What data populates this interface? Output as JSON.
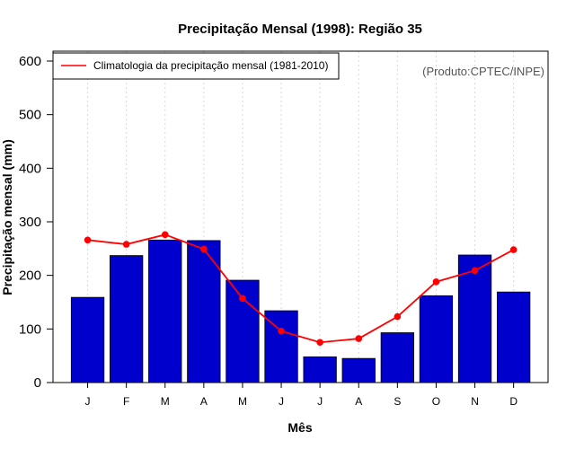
{
  "chart_data": {
    "type": "bar",
    "title": "Precipitação Mensal (1998): Região 35",
    "xlabel": "Mês",
    "ylabel": "Precipitação mensal (mm)",
    "categories": [
      "J",
      "F",
      "M",
      "A",
      "M",
      "J",
      "J",
      "A",
      "S",
      "O",
      "N",
      "D"
    ],
    "ylim": [
      0,
      600
    ],
    "yticks": [
      0,
      100,
      200,
      300,
      400,
      500,
      600
    ],
    "grid": true,
    "legend_position": "top-left",
    "series": [
      {
        "name": "Precipitação mensal (1998)",
        "kind": "bar",
        "color": "#0000CD",
        "values": [
          159,
          237,
          266,
          265,
          191,
          134,
          48,
          45,
          93,
          162,
          238,
          169
        ]
      },
      {
        "name": "Climatologia da precipitação mensal (1981-2010)",
        "kind": "line",
        "color": "#FF0000",
        "values": [
          266,
          258,
          276,
          249,
          157,
          96,
          75,
          82,
          123,
          188,
          209,
          248
        ]
      }
    ],
    "legend": [
      "Climatologia da precipitação mensal (1981-2010)"
    ],
    "annotation": "(Produto:CPTEC/INPE)"
  }
}
